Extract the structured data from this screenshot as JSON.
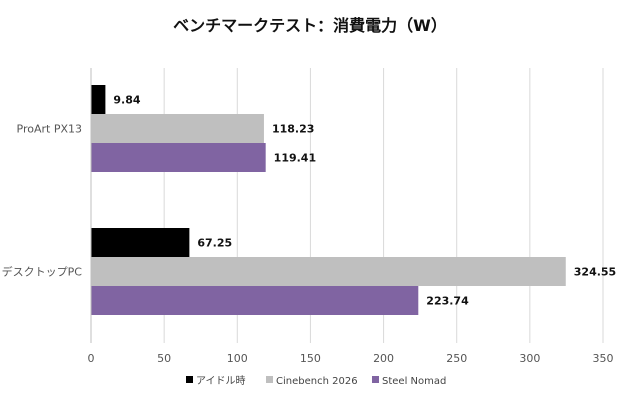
{
  "chart_data": {
    "type": "bar",
    "orientation": "horizontal",
    "title": "ベンチマークテスト：消費電力（W）",
    "categories": [
      "ProArt PX13",
      "デスクトップPC"
    ],
    "series": [
      {
        "name": "アイドル時",
        "values": [
          9.84,
          67.25
        ],
        "labels": [
          "9.84",
          "67.25"
        ],
        "color": "#000000"
      },
      {
        "name": "Cinebench 2026",
        "values": [
          118.23,
          324.55
        ],
        "labels": [
          "118.23",
          "324.55"
        ],
        "color": "#bfbfbf"
      },
      {
        "name": "Steel Nomad",
        "values": [
          119.41,
          223.74
        ],
        "labels": [
          "119.41",
          "223.74"
        ],
        "color": "#8064a2"
      }
    ],
    "xlim": [
      0,
      350
    ],
    "xticks": [
      0,
      50,
      100,
      150,
      200,
      250,
      300,
      350
    ],
    "xtick_labels": [
      "0",
      "50",
      "100",
      "150",
      "200",
      "250",
      "300",
      "350"
    ],
    "xlabel": "",
    "ylabel": "",
    "grid": true,
    "legend_position": "bottom"
  }
}
